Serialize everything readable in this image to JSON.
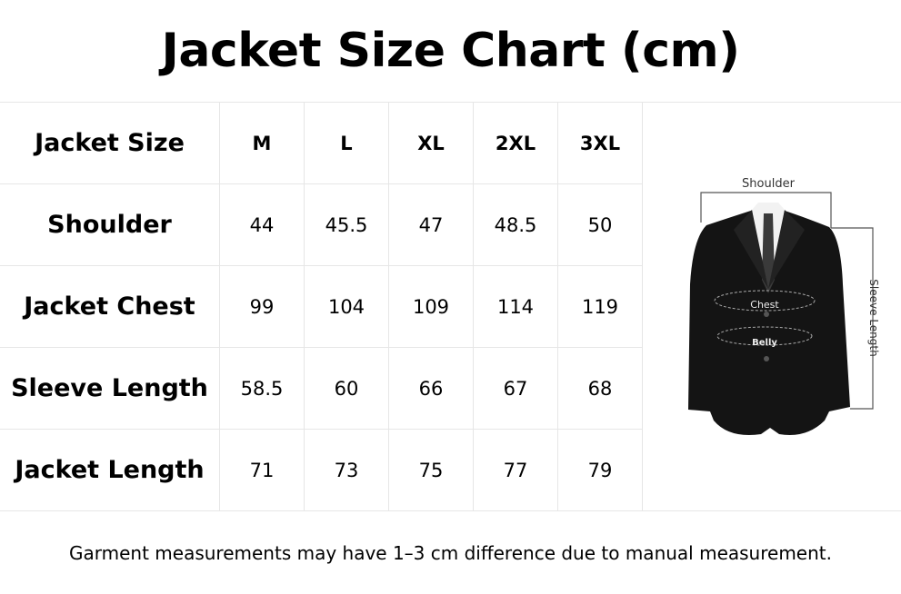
{
  "title": "Jacket Size Chart (cm)",
  "table": {
    "header_label": "Jacket Size",
    "sizes": [
      "M",
      "L",
      "XL",
      "2XL",
      "3XL"
    ],
    "rows": [
      {
        "label": "Shoulder",
        "values": [
          "44",
          "45.5",
          "47",
          "48.5",
          "50"
        ]
      },
      {
        "label": "Jacket Chest",
        "values": [
          "99",
          "104",
          "109",
          "114",
          "119"
        ]
      },
      {
        "label": "Sleeve Length",
        "values": [
          "58.5",
          "60",
          "66",
          "67",
          "68"
        ]
      },
      {
        "label": "Jacket Length",
        "values": [
          "71",
          "73",
          "75",
          "77",
          "79"
        ]
      }
    ]
  },
  "illustration": {
    "shoulder_label": "Shoulder",
    "chest_label": "Chest",
    "belly_label": "Belly",
    "sleeve_label": "Sleeve Length"
  },
  "footer": "Garment measurements may have 1–3 cm difference due to manual measurement."
}
